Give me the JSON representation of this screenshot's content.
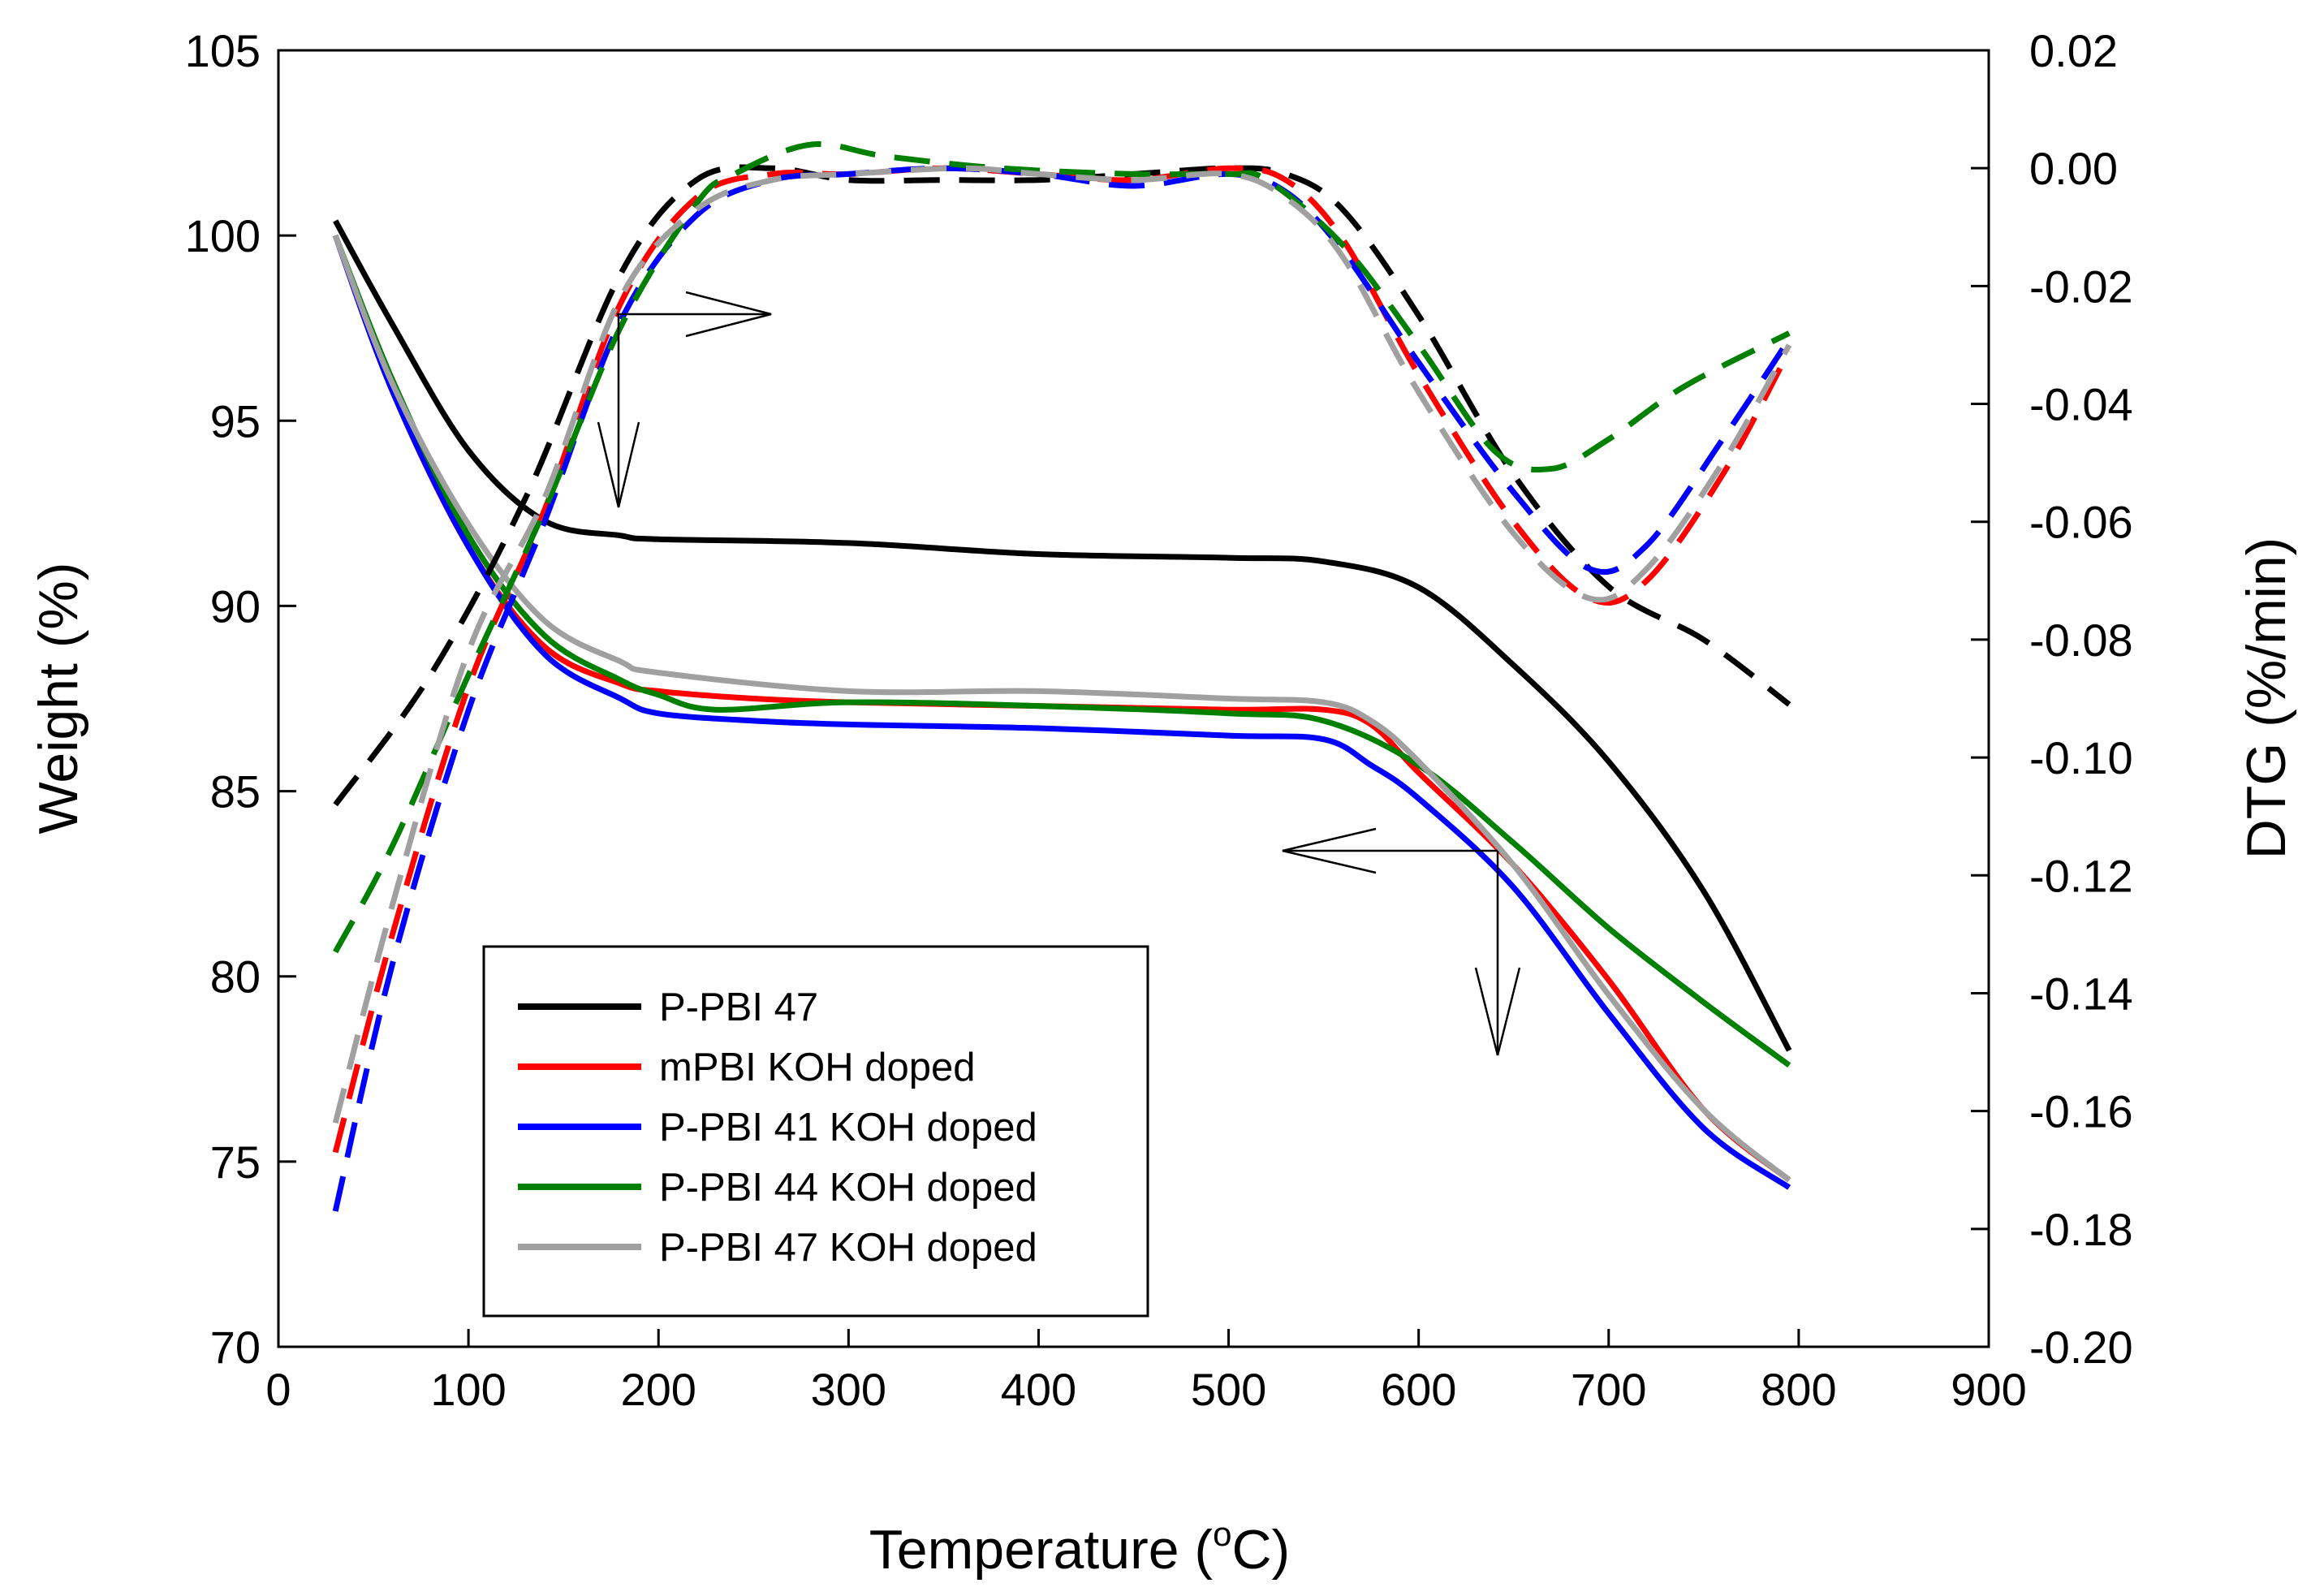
{
  "chart_data": {
    "type": "line",
    "xlabel": "Temperature (",
    "xlabel_super": "o",
    "xlabel_unit": "C)",
    "ylabel_left": "Weight (%)",
    "ylabel_right": "DTG (%/min)",
    "xlim": [
      0,
      900
    ],
    "ylim_left": [
      70,
      105
    ],
    "ylim_right": [
      -0.2,
      0.02
    ],
    "xticks": [
      "0",
      "100",
      "200",
      "300",
      "400",
      "500",
      "600",
      "700",
      "800",
      "900"
    ],
    "yticks_left": [
      "70",
      "75",
      "80",
      "85",
      "90",
      "95",
      "100",
      "105"
    ],
    "yticks_right": [
      "-0.20",
      "-0.18",
      "-0.16",
      "-0.14",
      "-0.12",
      "-0.10",
      "-0.08",
      "-0.06",
      "-0.04",
      "-0.02",
      "0.00",
      "0.02"
    ],
    "grid": false,
    "legend_position": "bottom-left",
    "legend": [
      {
        "name": "P-PBI 47",
        "color": "#000000"
      },
      {
        "name": "mPBI KOH doped",
        "color": "#ff0000"
      },
      {
        "name": "P-PBI 41 KOH doped",
        "color": "#0000ff"
      },
      {
        "name": "P-PBI 44 KOH doped",
        "color": "#008000"
      },
      {
        "name": "P-PBI 47 KOH doped",
        "color": "#a0a0a0"
      }
    ],
    "series": [
      {
        "color": "#000000",
        "axis": "left",
        "style": "solid",
        "x": [
          30,
          60,
          100,
          140,
          180,
          200,
          300,
          400,
          500,
          550,
          600,
          650,
          700,
          750,
          795
        ],
        "y": [
          100.4,
          97.6,
          94.2,
          92.3,
          91.9,
          91.8,
          91.7,
          91.4,
          91.3,
          91.2,
          90.5,
          88.4,
          85.8,
          82.3,
          78.0
        ]
      },
      {
        "color": "#ff0000",
        "axis": "left",
        "style": "solid",
        "x": [
          30,
          60,
          100,
          140,
          180,
          200,
          250,
          300,
          400,
          500,
          550,
          575,
          600,
          650,
          700,
          750,
          795
        ],
        "y": [
          100.0,
          95.8,
          91.6,
          88.9,
          87.9,
          87.7,
          87.5,
          87.4,
          87.3,
          87.2,
          87.2,
          86.8,
          85.5,
          83.0,
          79.9,
          76.4,
          74.5
        ]
      },
      {
        "color": "#0000ff",
        "axis": "left",
        "style": "solid",
        "x": [
          30,
          60,
          100,
          140,
          180,
          200,
          250,
          300,
          400,
          500,
          550,
          575,
          600,
          650,
          700,
          750,
          795
        ],
        "y": [
          100.0,
          95.8,
          91.6,
          88.7,
          87.5,
          87.1,
          86.9,
          86.8,
          86.7,
          86.5,
          86.4,
          85.7,
          84.8,
          82.4,
          79.0,
          75.9,
          74.3
        ]
      },
      {
        "color": "#008000",
        "axis": "left",
        "style": "solid",
        "x": [
          30,
          60,
          100,
          140,
          180,
          200,
          230,
          300,
          400,
          500,
          550,
          600,
          650,
          700,
          750,
          795
        ],
        "y": [
          100.0,
          96.1,
          91.9,
          89.2,
          88.0,
          87.6,
          87.2,
          87.4,
          87.3,
          87.1,
          86.9,
          85.7,
          83.6,
          81.3,
          79.3,
          77.6
        ]
      },
      {
        "color": "#a0a0a0",
        "axis": "left",
        "style": "solid",
        "x": [
          30,
          60,
          100,
          140,
          180,
          200,
          300,
          400,
          500,
          550,
          575,
          600,
          650,
          700,
          750,
          795
        ],
        "y": [
          100.0,
          96.0,
          92.2,
          89.6,
          88.5,
          88.2,
          87.7,
          87.7,
          87.5,
          87.4,
          86.9,
          85.8,
          83.0,
          79.5,
          76.4,
          74.5
        ]
      },
      {
        "color": "#000000",
        "axis": "right",
        "style": "dashed",
        "x": [
          30,
          80,
          130,
          180,
          220,
          260,
          300,
          350,
          400,
          450,
          500,
          530,
          560,
          600,
          650,
          700,
          750,
          795
        ],
        "y": [
          -0.108,
          -0.086,
          -0.056,
          -0.018,
          -0.002,
          0.0,
          -0.002,
          -0.002,
          -0.002,
          -0.001,
          0.0,
          -0.001,
          -0.007,
          -0.025,
          -0.052,
          -0.071,
          -0.08,
          -0.091
        ]
      },
      {
        "color": "#ff0000",
        "axis": "right",
        "style": "dashed",
        "x": [
          30,
          60,
          100,
          140,
          180,
          220,
          260,
          300,
          350,
          400,
          450,
          500,
          530,
          560,
          600,
          650,
          690,
          720,
          760,
          795
        ],
        "y": [
          -0.167,
          -0.13,
          -0.088,
          -0.058,
          -0.023,
          -0.005,
          -0.001,
          -0.001,
          0.0,
          -0.001,
          -0.002,
          0.0,
          -0.002,
          -0.012,
          -0.035,
          -0.06,
          -0.073,
          -0.07,
          -0.052,
          -0.031
        ]
      },
      {
        "color": "#0000ff",
        "axis": "right",
        "style": "dashed",
        "x": [
          30,
          60,
          100,
          140,
          180,
          220,
          260,
          300,
          350,
          400,
          450,
          500,
          530,
          560,
          600,
          650,
          690,
          720,
          760,
          795
        ],
        "y": [
          -0.177,
          -0.135,
          -0.092,
          -0.06,
          -0.026,
          -0.008,
          -0.002,
          -0.001,
          0.0,
          -0.001,
          -0.003,
          -0.001,
          -0.004,
          -0.014,
          -0.033,
          -0.055,
          -0.068,
          -0.064,
          -0.046,
          -0.029
        ]
      },
      {
        "color": "#008000",
        "axis": "right",
        "style": "dashed",
        "x": [
          30,
          60,
          100,
          140,
          180,
          220,
          240,
          280,
          320,
          380,
          450,
          500,
          520,
          560,
          600,
          640,
          670,
          700,
          740,
          795
        ],
        "y": [
          -0.133,
          -0.115,
          -0.086,
          -0.058,
          -0.027,
          -0.006,
          -0.001,
          0.004,
          0.002,
          0.0,
          -0.001,
          -0.001,
          -0.002,
          -0.013,
          -0.03,
          -0.048,
          -0.051,
          -0.046,
          -0.037,
          -0.028
        ]
      },
      {
        "color": "#a0a0a0",
        "axis": "right",
        "style": "dashed",
        "x": [
          30,
          60,
          100,
          140,
          180,
          220,
          260,
          300,
          360,
          400,
          450,
          500,
          530,
          560,
          600,
          650,
          690,
          720,
          760,
          795
        ],
        "y": [
          -0.162,
          -0.125,
          -0.082,
          -0.056,
          -0.022,
          -0.007,
          -0.002,
          -0.001,
          0.0,
          -0.001,
          -0.002,
          -0.001,
          -0.005,
          -0.015,
          -0.038,
          -0.062,
          -0.073,
          -0.068,
          -0.05,
          -0.03
        ]
      }
    ]
  }
}
